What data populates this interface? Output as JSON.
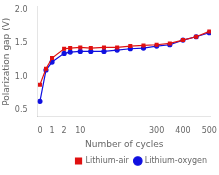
{
  "chart_data": {
    "type": "line",
    "xlabel": "Number of cycles",
    "ylabel": "Polarization gap (V)",
    "x": [
      0,
      0.5,
      1,
      2,
      5,
      10,
      50,
      100,
      150,
      200,
      250,
      300,
      350,
      400,
      450,
      500
    ],
    "series": [
      {
        "name": "Lithium-air",
        "color": "#e01010",
        "marker": "square",
        "values": [
          0.88,
          1.12,
          1.28,
          1.42,
          1.43,
          1.44,
          1.43,
          1.44,
          1.44,
          1.46,
          1.47,
          1.48,
          1.5,
          1.55,
          1.6,
          1.68
        ]
      },
      {
        "name": "Lithium-oxygen",
        "color": "#1010e0",
        "marker": "circle",
        "values": [
          0.63,
          1.1,
          1.22,
          1.35,
          1.37,
          1.38,
          1.38,
          1.38,
          1.4,
          1.42,
          1.43,
          1.46,
          1.48,
          1.55,
          1.6,
          1.66
        ]
      }
    ],
    "xlim": [
      -0.2,
      506.125
    ],
    "xticks": [
      0,
      1,
      2,
      10,
      300,
      400,
      500
    ],
    "ylim": [
      0.4,
      2.05
    ],
    "yticks": [
      0.5,
      {
        "value": 1,
        "label": "1.0"
      },
      1.5,
      {
        "value": 2,
        "label": "2.0"
      }
    ],
    "grid": false,
    "legend": "lower right"
  }
}
